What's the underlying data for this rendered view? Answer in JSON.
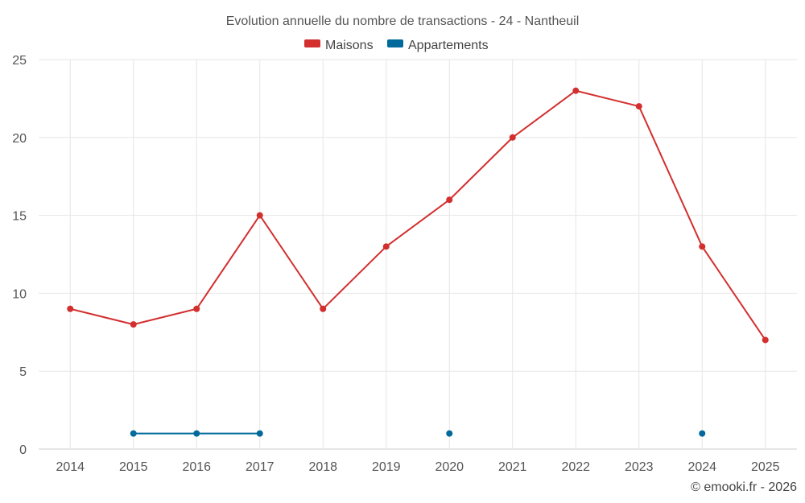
{
  "chart_data": {
    "type": "line",
    "title": "Evolution annuelle du nombre de transactions - 24 - Nantheuil",
    "categories": [
      "2014",
      "2015",
      "2016",
      "2017",
      "2018",
      "2019",
      "2020",
      "2021",
      "2022",
      "2023",
      "2024",
      "2025"
    ],
    "ylim": [
      0,
      25
    ],
    "yticks": [
      0,
      5,
      10,
      15,
      20,
      25
    ],
    "xlabel": "",
    "ylabel": "",
    "grid": true,
    "legend_position": "top-center",
    "series": [
      {
        "name": "Maisons",
        "color": "#d32f2f",
        "values": [
          9,
          8,
          9,
          15,
          9,
          13,
          16,
          20,
          23,
          22,
          13,
          7
        ]
      },
      {
        "name": "Appartements",
        "color": "#01699b",
        "values": [
          null,
          1,
          1,
          1,
          null,
          null,
          1,
          null,
          null,
          null,
          1,
          null
        ]
      }
    ],
    "credit": "© emooki.fr - 2026"
  }
}
